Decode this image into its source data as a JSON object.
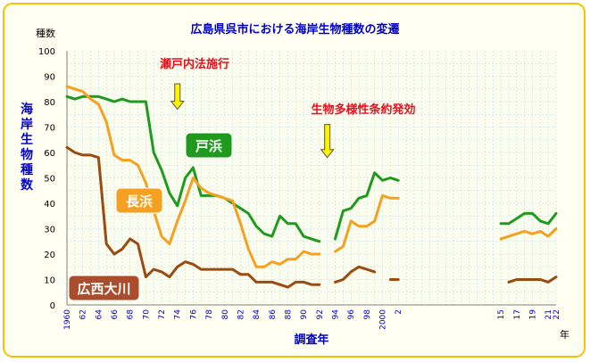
{
  "chart_data": {
    "type": "line",
    "title": "広島県呉市における海岸生物種数の変遷",
    "ylabel": "海岸生物種数",
    "y_unit": "種数",
    "xlabel": "調査年",
    "x_unit": "年",
    "ylim": [
      0,
      100
    ],
    "y_ticks": [
      0,
      10,
      20,
      30,
      40,
      50,
      60,
      70,
      80,
      90,
      100
    ],
    "x_ticks": [
      1960,
      1962,
      1964,
      1966,
      1968,
      1970,
      1972,
      1974,
      1976,
      1978,
      1980,
      1982,
      1984,
      1986,
      1988,
      1990,
      1992,
      1994,
      1996,
      1998,
      2000,
      2002,
      2015,
      2017,
      2019,
      2021,
      2022
    ],
    "x_tick_labels": [
      "1960",
      "62",
      "64",
      "66",
      "68",
      "70",
      "72",
      "74",
      "76",
      "78",
      "80",
      "82",
      "84",
      "86",
      "88",
      "90",
      "92",
      "94",
      "96",
      "98",
      "2000",
      "2",
      "15",
      "17",
      "19",
      "21",
      "22"
    ],
    "grid": true,
    "series": [
      {
        "name": "戸浜",
        "color": "#1f9a1f",
        "segments": [
          [
            [
              1960,
              82
            ],
            [
              1961,
              81
            ],
            [
              1962,
              82
            ],
            [
              1963,
              82
            ],
            [
              1964,
              82
            ],
            [
              1965,
              81
            ],
            [
              1966,
              80
            ],
            [
              1967,
              81
            ],
            [
              1968,
              80
            ],
            [
              1969,
              80
            ],
            [
              1970,
              80
            ],
            [
              1971,
              60
            ],
            [
              1972,
              53
            ],
            [
              1973,
              44
            ],
            [
              1974,
              39
            ],
            [
              1975,
              50
            ],
            [
              1976,
              54
            ],
            [
              1977,
              43
            ],
            [
              1978,
              43
            ],
            [
              1979,
              43
            ],
            [
              1980,
              42
            ],
            [
              1981,
              40
            ],
            [
              1982,
              38
            ],
            [
              1983,
              36
            ],
            [
              1984,
              31
            ],
            [
              1985,
              28
            ],
            [
              1986,
              27
            ],
            [
              1987,
              35
            ],
            [
              1988,
              32
            ],
            [
              1989,
              32
            ],
            [
              1990,
              27
            ],
            [
              1991,
              26
            ],
            [
              1992,
              25
            ]
          ],
          [
            [
              1994,
              26
            ],
            [
              1995,
              37
            ],
            [
              1996,
              38
            ],
            [
              1997,
              42
            ],
            [
              1998,
              43
            ],
            [
              1999,
              52
            ],
            [
              2000,
              49
            ],
            [
              2001,
              50
            ],
            [
              2002,
              49
            ]
          ],
          [
            [
              2015,
              32
            ],
            [
              2016,
              32
            ],
            [
              2017,
              34
            ],
            [
              2018,
              36
            ],
            [
              2019,
              36
            ],
            [
              2020,
              33
            ],
            [
              2021,
              32
            ],
            [
              2022,
              36
            ]
          ]
        ]
      },
      {
        "name": "長浜",
        "color": "#f5a020",
        "segments": [
          [
            [
              1960,
              86
            ],
            [
              1961,
              85
            ],
            [
              1962,
              84
            ],
            [
              1963,
              81
            ],
            [
              1964,
              79
            ],
            [
              1965,
              72
            ],
            [
              1966,
              59
            ],
            [
              1967,
              57
            ],
            [
              1968,
              57
            ],
            [
              1969,
              55
            ],
            [
              1970,
              48
            ],
            [
              1971,
              37
            ],
            [
              1972,
              27
            ],
            [
              1973,
              24
            ],
            [
              1974,
              33
            ],
            [
              1975,
              41
            ],
            [
              1976,
              50
            ],
            [
              1977,
              46
            ],
            [
              1978,
              44
            ],
            [
              1979,
              43
            ],
            [
              1980,
              42
            ],
            [
              1981,
              41
            ],
            [
              1982,
              32
            ],
            [
              1983,
              22
            ],
            [
              1984,
              15
            ],
            [
              1985,
              15
            ],
            [
              1986,
              17
            ],
            [
              1987,
              16
            ],
            [
              1988,
              18
            ],
            [
              1989,
              18
            ],
            [
              1990,
              21
            ],
            [
              1991,
              20
            ],
            [
              1992,
              20
            ]
          ],
          [
            [
              1994,
              21
            ],
            [
              1995,
              23
            ],
            [
              1996,
              33
            ],
            [
              1997,
              31
            ],
            [
              1998,
              31
            ],
            [
              1999,
              33
            ],
            [
              2000,
              43
            ],
            [
              2001,
              42
            ],
            [
              2002,
              42
            ]
          ],
          [
            [
              2015,
              26
            ],
            [
              2016,
              27
            ],
            [
              2017,
              28
            ],
            [
              2018,
              29
            ],
            [
              2019,
              28
            ],
            [
              2020,
              29
            ],
            [
              2021,
              27
            ],
            [
              2022,
              30
            ]
          ]
        ]
      },
      {
        "name": "広西大川",
        "color": "#9b4a10",
        "segments": [
          [
            [
              1960,
              62
            ],
            [
              1961,
              60
            ],
            [
              1962,
              59
            ],
            [
              1963,
              59
            ],
            [
              1964,
              58
            ],
            [
              1965,
              24
            ],
            [
              1966,
              20
            ],
            [
              1967,
              22
            ],
            [
              1968,
              26
            ],
            [
              1969,
              24
            ],
            [
              1970,
              11
            ],
            [
              1971,
              14
            ],
            [
              1972,
              13
            ],
            [
              1973,
              11
            ],
            [
              1974,
              15
            ],
            [
              1975,
              17
            ],
            [
              1976,
              16
            ],
            [
              1977,
              14
            ],
            [
              1978,
              14
            ],
            [
              1979,
              14
            ],
            [
              1980,
              14
            ],
            [
              1981,
              14
            ],
            [
              1982,
              12
            ],
            [
              1983,
              12
            ],
            [
              1984,
              9
            ],
            [
              1985,
              9
            ],
            [
              1986,
              9
            ],
            [
              1987,
              8
            ],
            [
              1988,
              7
            ],
            [
              1989,
              9
            ],
            [
              1990,
              9
            ],
            [
              1991,
              8
            ],
            [
              1992,
              8
            ]
          ],
          [
            [
              1994,
              9
            ],
            [
              1995,
              10
            ],
            [
              1996,
              13
            ],
            [
              1997,
              15
            ],
            [
              1998,
              14
            ],
            [
              1999,
              13
            ]
          ],
          [
            [
              2001,
              10
            ],
            [
              2002,
              10
            ]
          ],
          [
            [
              2016,
              9
            ],
            [
              2017,
              10
            ],
            [
              2018,
              10
            ],
            [
              2019,
              10
            ],
            [
              2020,
              10
            ],
            [
              2021,
              9
            ],
            [
              2022,
              11
            ]
          ]
        ]
      }
    ],
    "annotations": [
      {
        "text": "瀬戸内法施行",
        "year": 1974,
        "arrow_top": 87,
        "arrow_bottom": 77
      },
      {
        "text": "生物多様性条約発効",
        "year": 1993,
        "arrow_top": 71,
        "arrow_bottom": 58
      }
    ]
  }
}
